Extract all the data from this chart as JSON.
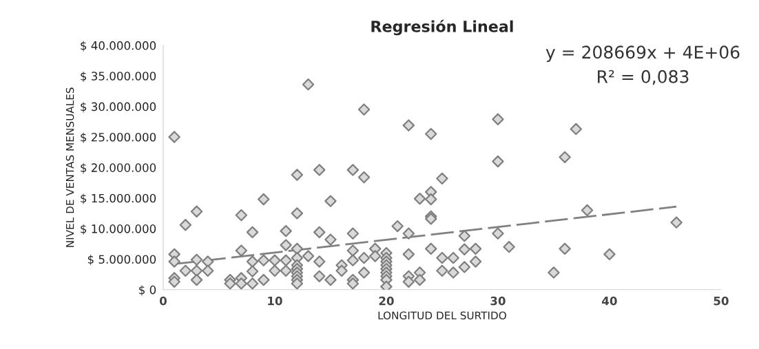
{
  "chart_data": {
    "type": "scatter",
    "title": "Regresión Lineal",
    "xlabel": "LONGITUD DEL SURTIDO",
    "ylabel": "NIVEL DE VENTAS MENSUALES",
    "annotations": [
      "y = 208669x + 4E+06",
      "R² = 0,083"
    ],
    "xlim": [
      0,
      50
    ],
    "xticks": [
      0,
      10,
      20,
      30,
      40,
      50
    ],
    "ylim": [
      0,
      40000000
    ],
    "yticks": [
      {
        "value": 0,
        "label": "$ 0"
      },
      {
        "value": 5000000,
        "label": "$ 5.000.000"
      },
      {
        "value": 10000000,
        "label": "$ 10.000.000"
      },
      {
        "value": 15000000,
        "label": "$ 15.000.000"
      },
      {
        "value": 20000000,
        "label": "$ 20.000.000"
      },
      {
        "value": 25000000,
        "label": "$ 25.000.000"
      },
      {
        "value": 30000000,
        "label": "$ 30.000.000"
      },
      {
        "value": 35000000,
        "label": "$ 35.000.000"
      },
      {
        "value": 40000000,
        "label": "$ 40.000.000"
      }
    ],
    "grid": false,
    "series": [
      {
        "color": "#7f7f7f",
        "marker": "diamond",
        "x": [
          1,
          1,
          1,
          1,
          1,
          2,
          2,
          3,
          3,
          3,
          3,
          4,
          4,
          6,
          6,
          7,
          7,
          7,
          7,
          8,
          8,
          8,
          8,
          9,
          9,
          9,
          10,
          10,
          11,
          11,
          11,
          11,
          12,
          12,
          12,
          12,
          12,
          12,
          12,
          12,
          12,
          12,
          13,
          13,
          14,
          14,
          14,
          14,
          15,
          15,
          15,
          16,
          16,
          17,
          17,
          17,
          17,
          17,
          17,
          18,
          18,
          18,
          18,
          19,
          19,
          20,
          20,
          20,
          20,
          20,
          20,
          20,
          20,
          20,
          21,
          22,
          22,
          22,
          22,
          22,
          23,
          23,
          23,
          24,
          24,
          24,
          24,
          24,
          24,
          25,
          25,
          25,
          26,
          26,
          27,
          27,
          27,
          28,
          28,
          30,
          30,
          30,
          31,
          35,
          36,
          36,
          37,
          38,
          40,
          46
        ],
        "values": [
          25000000,
          5800000,
          4600000,
          1900000,
          1300000,
          10600000,
          3100000,
          12800000,
          4900000,
          3100000,
          1600000,
          4600000,
          3100000,
          1600000,
          1000000,
          12200000,
          6400000,
          1900000,
          1000000,
          9400000,
          4600000,
          3000000,
          1000000,
          14800000,
          4800000,
          1600000,
          4800000,
          3100000,
          9600000,
          7300000,
          4800000,
          3100000,
          18800000,
          12500000,
          6700000,
          5200000,
          4000000,
          3400000,
          2800000,
          2200000,
          1600000,
          1000000,
          33600000,
          5500000,
          19600000,
          9400000,
          4600000,
          2200000,
          14500000,
          8200000,
          1600000,
          4000000,
          3100000,
          19600000,
          9200000,
          6400000,
          4800000,
          1600000,
          1000000,
          29500000,
          18400000,
          5200000,
          2800000,
          6700000,
          5500000,
          6000000,
          5200000,
          4600000,
          4000000,
          3400000,
          2800000,
          2200000,
          1600000,
          500000,
          10400000,
          26900000,
          9200000,
          5800000,
          2200000,
          1300000,
          14900000,
          2800000,
          1600000,
          25500000,
          16000000,
          14800000,
          12000000,
          11600000,
          6700000,
          18200000,
          5200000,
          3100000,
          5200000,
          2800000,
          8800000,
          6600000,
          3700000,
          6700000,
          4600000,
          27900000,
          21000000,
          9200000,
          7000000,
          2800000,
          21700000,
          6700000,
          26300000,
          13000000,
          5800000,
          11000000
        ]
      },
      {
        "type": "line",
        "line_style": "dashed",
        "marker": "none",
        "color": "#808080",
        "x": [
          1,
          46
        ],
        "values": [
          4200000,
          13600000
        ]
      }
    ]
  }
}
